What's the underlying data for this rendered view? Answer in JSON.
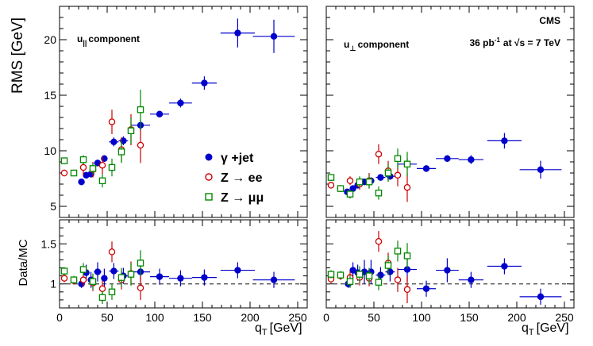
{
  "figure": {
    "experiment_label": "CMS",
    "lumi_label": "36 pb",
    "lumi_sup": "-1",
    "energy_label": "at √s = 7 TeV",
    "xlabel": "q",
    "xlabel_sub": "T",
    "xlabel_unit": "[GeV]"
  },
  "legend": {
    "items": [
      {
        "label": "γ +jet",
        "marker": "filled-circle",
        "color": "#0000cc"
      },
      {
        "label": "Z → ee",
        "marker": "open-circle",
        "color": "#cc0000"
      },
      {
        "label": "Z → μμ",
        "marker": "open-square",
        "color": "#008800"
      }
    ]
  },
  "chart_data": [
    {
      "type": "scatter",
      "panel": "top-left",
      "annotation": "u|| component",
      "ylabel": "RMS [GeV]",
      "xlim": [
        0,
        260
      ],
      "ylim": [
        4,
        23
      ],
      "xticks": [
        0,
        50,
        100,
        150,
        200,
        250
      ],
      "yticks": [
        5,
        10,
        15,
        20
      ],
      "series": [
        {
          "name": "γ +jet",
          "marker": "filled-circle",
          "color": "#0000cc",
          "points": [
            {
              "x": 23,
              "y": 7.2,
              "xerr": 2.5,
              "yerr": 0.3
            },
            {
              "x": 28,
              "y": 7.8,
              "xerr": 2.5,
              "yerr": 0.3
            },
            {
              "x": 33,
              "y": 7.9,
              "xerr": 2.5,
              "yerr": 0.3
            },
            {
              "x": 40,
              "y": 8.9,
              "xerr": 4,
              "yerr": 0.3
            },
            {
              "x": 47,
              "y": 9.3,
              "xerr": 3,
              "yerr": 0.3
            },
            {
              "x": 57,
              "y": 10.8,
              "xerr": 5,
              "yerr": 0.4
            },
            {
              "x": 67,
              "y": 10.9,
              "xerr": 5,
              "yerr": 0.4
            },
            {
              "x": 85,
              "y": 12.3,
              "xerr": 10,
              "yerr": 0.5
            },
            {
              "x": 105,
              "y": 13.3,
              "xerr": 10,
              "yerr": 0.3
            },
            {
              "x": 127,
              "y": 14.3,
              "xerr": 12,
              "yerr": 0.4
            },
            {
              "x": 152,
              "y": 16.1,
              "xerr": 13,
              "yerr": 0.6
            },
            {
              "x": 187,
              "y": 20.6,
              "xerr": 18,
              "yerr": 1.3
            },
            {
              "x": 225,
              "y": 20.3,
              "xerr": 22,
              "yerr": 1.5
            }
          ]
        },
        {
          "name": "Z → ee",
          "marker": "open-circle",
          "color": "#cc0000",
          "points": [
            {
              "x": 5,
              "y": 8.0,
              "xerr": 0,
              "yerr": 0.3
            },
            {
              "x": 25,
              "y": 8.5,
              "xerr": 0,
              "yerr": 0.7
            },
            {
              "x": 35,
              "y": 8.3,
              "xerr": 0,
              "yerr": 0.7
            },
            {
              "x": 45,
              "y": 8.7,
              "xerr": 0,
              "yerr": 0.8
            },
            {
              "x": 55,
              "y": 12.6,
              "xerr": 0,
              "yerr": 1.1
            },
            {
              "x": 65,
              "y": 10.1,
              "xerr": 0,
              "yerr": 1.1
            },
            {
              "x": 75,
              "y": 11.9,
              "xerr": 0,
              "yerr": 1.4
            },
            {
              "x": 85,
              "y": 10.5,
              "xerr": 0,
              "yerr": 1.6
            }
          ]
        },
        {
          "name": "Z → μμ",
          "marker": "open-square",
          "color": "#008800",
          "points": [
            {
              "x": 5,
              "y": 9.1,
              "xerr": 0,
              "yerr": 0.3
            },
            {
              "x": 15,
              "y": 8.0,
              "xerr": 0,
              "yerr": 0.3
            },
            {
              "x": 25,
              "y": 9.2,
              "xerr": 0,
              "yerr": 0.4
            },
            {
              "x": 35,
              "y": 8.4,
              "xerr": 0,
              "yerr": 0.5
            },
            {
              "x": 45,
              "y": 7.3,
              "xerr": 0,
              "yerr": 0.6
            },
            {
              "x": 55,
              "y": 8.5,
              "xerr": 0,
              "yerr": 0.8
            },
            {
              "x": 65,
              "y": 9.9,
              "xerr": 0,
              "yerr": 1.0
            },
            {
              "x": 75,
              "y": 11.8,
              "xerr": 0,
              "yerr": 1.2
            },
            {
              "x": 85,
              "y": 13.7,
              "xerr": 0,
              "yerr": 1.8
            }
          ]
        }
      ]
    },
    {
      "type": "scatter",
      "panel": "top-right",
      "annotation": "u⊥ component",
      "ylabel": "",
      "xlim": [
        0,
        260
      ],
      "ylim": [
        4,
        23
      ],
      "xticks": [
        0,
        50,
        100,
        150,
        200,
        250
      ],
      "yticks": [
        5,
        10,
        15,
        20
      ],
      "series": [
        {
          "name": "γ +jet",
          "marker": "filled-circle",
          "color": "#0000cc",
          "points": [
            {
              "x": 22,
              "y": 6.3,
              "xerr": 2.5,
              "yerr": 0.3
            },
            {
              "x": 28,
              "y": 6.6,
              "xerr": 2.5,
              "yerr": 0.3
            },
            {
              "x": 33,
              "y": 6.9,
              "xerr": 2.5,
              "yerr": 0.3
            },
            {
              "x": 40,
              "y": 7.2,
              "xerr": 4,
              "yerr": 0.3
            },
            {
              "x": 47,
              "y": 7.3,
              "xerr": 3,
              "yerr": 0.3
            },
            {
              "x": 57,
              "y": 7.6,
              "xerr": 5,
              "yerr": 0.3
            },
            {
              "x": 67,
              "y": 7.7,
              "xerr": 5,
              "yerr": 0.3
            },
            {
              "x": 85,
              "y": 8.8,
              "xerr": 10,
              "yerr": 0.5
            },
            {
              "x": 105,
              "y": 8.4,
              "xerr": 10,
              "yerr": 0.3
            },
            {
              "x": 127,
              "y": 9.3,
              "xerr": 12,
              "yerr": 0.3
            },
            {
              "x": 152,
              "y": 9.2,
              "xerr": 13,
              "yerr": 0.4
            },
            {
              "x": 187,
              "y": 10.9,
              "xerr": 18,
              "yerr": 0.7
            },
            {
              "x": 225,
              "y": 8.3,
              "xerr": 22,
              "yerr": 0.8
            }
          ]
        },
        {
          "name": "Z → ee",
          "marker": "open-circle",
          "color": "#cc0000",
          "points": [
            {
              "x": 5,
              "y": 6.9,
              "xerr": 0,
              "yerr": 0.3
            },
            {
              "x": 15,
              "y": 6.6,
              "xerr": 0,
              "yerr": 0.3
            },
            {
              "x": 25,
              "y": 7.3,
              "xerr": 0,
              "yerr": 0.4
            },
            {
              "x": 35,
              "y": 7.0,
              "xerr": 0,
              "yerr": 0.5
            },
            {
              "x": 45,
              "y": 7.3,
              "xerr": 0,
              "yerr": 0.7
            },
            {
              "x": 55,
              "y": 9.7,
              "xerr": 0,
              "yerr": 0.9
            },
            {
              "x": 65,
              "y": 8.2,
              "xerr": 0,
              "yerr": 0.9
            },
            {
              "x": 75,
              "y": 7.8,
              "xerr": 0,
              "yerr": 1.0
            },
            {
              "x": 85,
              "y": 6.7,
              "xerr": 0,
              "yerr": 1.3
            }
          ]
        },
        {
          "name": "Z → μμ",
          "marker": "open-square",
          "color": "#008800",
          "points": [
            {
              "x": 5,
              "y": 7.6,
              "xerr": 0,
              "yerr": 0.3
            },
            {
              "x": 15,
              "y": 6.6,
              "xerr": 0,
              "yerr": 0.3
            },
            {
              "x": 25,
              "y": 6.1,
              "xerr": 0,
              "yerr": 0.4
            },
            {
              "x": 35,
              "y": 7.2,
              "xerr": 0,
              "yerr": 0.5
            },
            {
              "x": 45,
              "y": 7.2,
              "xerr": 0,
              "yerr": 0.6
            },
            {
              "x": 55,
              "y": 6.2,
              "xerr": 0,
              "yerr": 0.6
            },
            {
              "x": 65,
              "y": 8.0,
              "xerr": 0,
              "yerr": 0.8
            },
            {
              "x": 75,
              "y": 9.3,
              "xerr": 0,
              "yerr": 0.9
            },
            {
              "x": 85,
              "y": 8.8,
              "xerr": 0,
              "yerr": 1.1
            }
          ]
        }
      ]
    },
    {
      "type": "scatter",
      "panel": "bottom-left",
      "ylabel": "Data/MC",
      "xlim": [
        0,
        260
      ],
      "ylim": [
        0.7,
        1.8
      ],
      "xticks": [
        0,
        50,
        100,
        150,
        200,
        250
      ],
      "yticks": [
        1,
        1.5
      ],
      "reference_line": 1,
      "series": [
        {
          "name": "γ +jet",
          "marker": "filled-circle",
          "color": "#0000cc",
          "points": [
            {
              "x": 23,
              "y": 1.0,
              "xerr": 2.5,
              "yerr": 0.05
            },
            {
              "x": 28,
              "y": 1.14,
              "xerr": 2.5,
              "yerr": 0.1
            },
            {
              "x": 33,
              "y": 1.05,
              "xerr": 2.5,
              "yerr": 0.1
            },
            {
              "x": 40,
              "y": 1.15,
              "xerr": 4,
              "yerr": 0.12
            },
            {
              "x": 47,
              "y": 1.07,
              "xerr": 3,
              "yerr": 0.12
            },
            {
              "x": 57,
              "y": 1.16,
              "xerr": 5,
              "yerr": 0.1
            },
            {
              "x": 67,
              "y": 1.1,
              "xerr": 5,
              "yerr": 0.1
            },
            {
              "x": 85,
              "y": 1.15,
              "xerr": 10,
              "yerr": 0.12
            },
            {
              "x": 105,
              "y": 1.09,
              "xerr": 10,
              "yerr": 0.1
            },
            {
              "x": 127,
              "y": 1.07,
              "xerr": 12,
              "yerr": 0.1
            },
            {
              "x": 152,
              "y": 1.08,
              "xerr": 13,
              "yerr": 0.1
            },
            {
              "x": 187,
              "y": 1.17,
              "xerr": 18,
              "yerr": 0.1
            },
            {
              "x": 225,
              "y": 1.05,
              "xerr": 22,
              "yerr": 0.1
            }
          ]
        },
        {
          "name": "Z → ee",
          "marker": "open-circle",
          "color": "#cc0000",
          "points": [
            {
              "x": 5,
              "y": 1.07,
              "xerr": 0,
              "yerr": 0.05
            },
            {
              "x": 15,
              "y": 1.04,
              "xerr": 0,
              "yerr": 0.05
            },
            {
              "x": 25,
              "y": 1.05,
              "xerr": 0,
              "yerr": 0.08
            },
            {
              "x": 35,
              "y": 1.01,
              "xerr": 0,
              "yerr": 0.1
            },
            {
              "x": 45,
              "y": 0.94,
              "xerr": 0,
              "yerr": 0.1
            },
            {
              "x": 55,
              "y": 1.4,
              "xerr": 0,
              "yerr": 0.13
            },
            {
              "x": 65,
              "y": 1.05,
              "xerr": 0,
              "yerr": 0.12
            },
            {
              "x": 75,
              "y": 1.13,
              "xerr": 0,
              "yerr": 0.15
            },
            {
              "x": 85,
              "y": 0.95,
              "xerr": 0,
              "yerr": 0.15
            }
          ]
        },
        {
          "name": "Z → μμ",
          "marker": "open-square",
          "color": "#008800",
          "points": [
            {
              "x": 5,
              "y": 1.16,
              "xerr": 0,
              "yerr": 0.05
            },
            {
              "x": 15,
              "y": 1.05,
              "xerr": 0,
              "yerr": 0.05
            },
            {
              "x": 25,
              "y": 1.18,
              "xerr": 0,
              "yerr": 0.08
            },
            {
              "x": 35,
              "y": 1.03,
              "xerr": 0,
              "yerr": 0.1
            },
            {
              "x": 45,
              "y": 0.83,
              "xerr": 0,
              "yerr": 0.08
            },
            {
              "x": 55,
              "y": 0.9,
              "xerr": 0,
              "yerr": 0.1
            },
            {
              "x": 65,
              "y": 1.08,
              "xerr": 0,
              "yerr": 0.12
            },
            {
              "x": 75,
              "y": 1.12,
              "xerr": 0,
              "yerr": 0.14
            },
            {
              "x": 85,
              "y": 1.26,
              "xerr": 0,
              "yerr": 0.16
            }
          ]
        }
      ]
    },
    {
      "type": "scatter",
      "panel": "bottom-right",
      "ylabel": "",
      "xlim": [
        0,
        260
      ],
      "ylim": [
        0.7,
        1.8
      ],
      "xticks": [
        0,
        50,
        100,
        150,
        200,
        250
      ],
      "yticks": [
        1,
        1.5
      ],
      "reference_line": 1,
      "series": [
        {
          "name": "γ +jet",
          "marker": "filled-circle",
          "color": "#0000cc",
          "points": [
            {
              "x": 23,
              "y": 1.0,
              "xerr": 2.5,
              "yerr": 0.05
            },
            {
              "x": 28,
              "y": 1.17,
              "xerr": 2.5,
              "yerr": 0.1
            },
            {
              "x": 33,
              "y": 1.14,
              "xerr": 2.5,
              "yerr": 0.1
            },
            {
              "x": 40,
              "y": 1.15,
              "xerr": 4,
              "yerr": 0.15
            },
            {
              "x": 47,
              "y": 1.15,
              "xerr": 3,
              "yerr": 0.15
            },
            {
              "x": 57,
              "y": 1.11,
              "xerr": 5,
              "yerr": 0.1
            },
            {
              "x": 67,
              "y": 1.15,
              "xerr": 5,
              "yerr": 0.12
            },
            {
              "x": 85,
              "y": 1.18,
              "xerr": 10,
              "yerr": 0.15
            },
            {
              "x": 105,
              "y": 0.94,
              "xerr": 10,
              "yerr": 0.1
            },
            {
              "x": 127,
              "y": 1.17,
              "xerr": 12,
              "yerr": 0.15
            },
            {
              "x": 152,
              "y": 1.05,
              "xerr": 13,
              "yerr": 0.1
            },
            {
              "x": 187,
              "y": 1.22,
              "xerr": 18,
              "yerr": 0.1
            },
            {
              "x": 225,
              "y": 0.84,
              "xerr": 22,
              "yerr": 0.1
            }
          ]
        },
        {
          "name": "Z → ee",
          "marker": "open-circle",
          "color": "#cc0000",
          "points": [
            {
              "x": 5,
              "y": 1.06,
              "xerr": 0,
              "yerr": 0.05
            },
            {
              "x": 15,
              "y": 1.1,
              "xerr": 0,
              "yerr": 0.05
            },
            {
              "x": 25,
              "y": 1.08,
              "xerr": 0,
              "yerr": 0.08
            },
            {
              "x": 35,
              "y": 1.08,
              "xerr": 0,
              "yerr": 0.1
            },
            {
              "x": 45,
              "y": 1.07,
              "xerr": 0,
              "yerr": 0.1
            },
            {
              "x": 55,
              "y": 1.53,
              "xerr": 0,
              "yerr": 0.13
            },
            {
              "x": 65,
              "y": 1.26,
              "xerr": 0,
              "yerr": 0.13
            },
            {
              "x": 75,
              "y": 1.05,
              "xerr": 0,
              "yerr": 0.15
            },
            {
              "x": 85,
              "y": 0.93,
              "xerr": 0,
              "yerr": 0.17
            }
          ]
        },
        {
          "name": "Z → μμ",
          "marker": "open-square",
          "color": "#008800",
          "points": [
            {
              "x": 5,
              "y": 1.12,
              "xerr": 0,
              "yerr": 0.05
            },
            {
              "x": 15,
              "y": 1.11,
              "xerr": 0,
              "yerr": 0.05
            },
            {
              "x": 25,
              "y": 1.03,
              "xerr": 0,
              "yerr": 0.08
            },
            {
              "x": 35,
              "y": 1.12,
              "xerr": 0,
              "yerr": 0.1
            },
            {
              "x": 45,
              "y": 1.1,
              "xerr": 0,
              "yerr": 0.1
            },
            {
              "x": 55,
              "y": 1.02,
              "xerr": 0,
              "yerr": 0.1
            },
            {
              "x": 65,
              "y": 1.23,
              "xerr": 0,
              "yerr": 0.12
            },
            {
              "x": 75,
              "y": 1.41,
              "xerr": 0,
              "yerr": 0.13
            },
            {
              "x": 85,
              "y": 1.35,
              "xerr": 0,
              "yerr": 0.16
            }
          ]
        }
      ]
    }
  ]
}
